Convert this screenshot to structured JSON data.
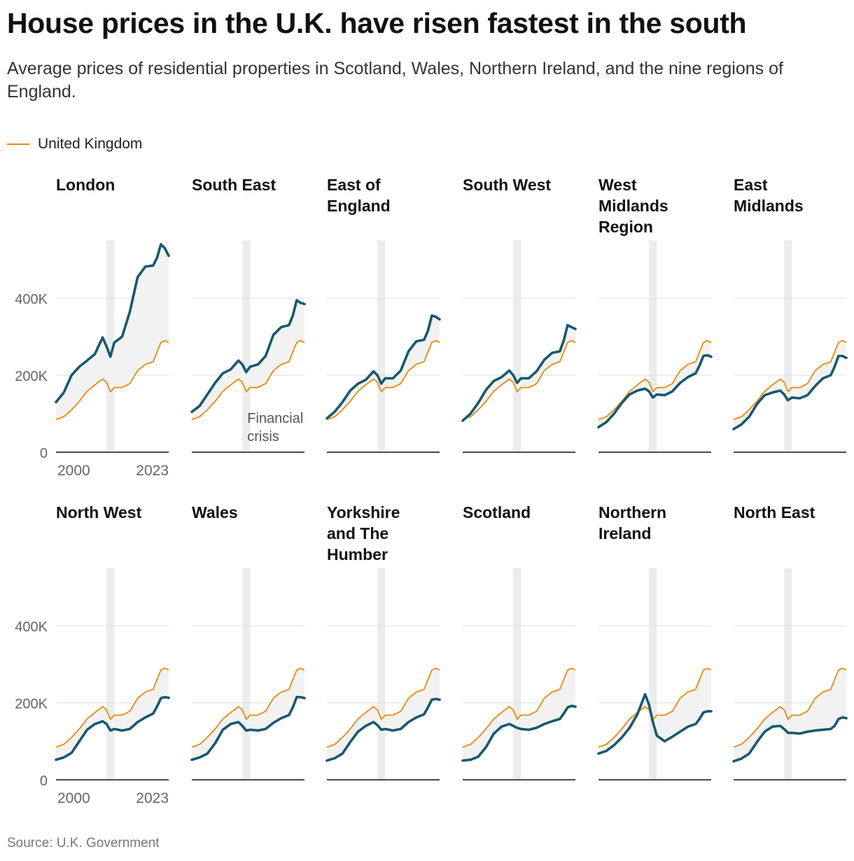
{
  "title": "House prices in the U.K. have risen fastest in the south",
  "subtitle": "Average prices of residential properties in Scotland, Wales, Northern Ireland, and the nine regions of England.",
  "legend": {
    "label": "United Kingdom",
    "color": "#e8890c"
  },
  "source": "Source: U.K. Government",
  "colors": {
    "region": "#17586f",
    "uk": "#e8890c",
    "shade": "#f2f2f2",
    "crisis": "#ececec",
    "grid": "#dddddd"
  },
  "annotation": {
    "line1": "Financial",
    "line2": "crisis"
  },
  "chart_data": {
    "type": "line",
    "x_range": [
      1995,
      2024
    ],
    "y_range": [
      0,
      550000
    ],
    "y_ticks": [
      0,
      200000,
      400000
    ],
    "y_tick_labels": [
      "0",
      "200K",
      "400K"
    ],
    "x_tick_labels": [
      "2000",
      "2023"
    ],
    "crisis_band": [
      2008,
      2010
    ],
    "grid": true,
    "x": [
      1995,
      1997,
      1999,
      2001,
      2003,
      2005,
      2007,
      2008,
      2009,
      2010,
      2012,
      2014,
      2016,
      2018,
      2020,
      2021,
      2022,
      2023,
      2024
    ],
    "uk_series": {
      "name": "United Kingdom",
      "values": [
        85000,
        92000,
        110000,
        132000,
        158000,
        175000,
        190000,
        182000,
        157000,
        168000,
        168000,
        178000,
        212000,
        228000,
        235000,
        260000,
        285000,
        290000,
        285000
      ]
    },
    "regions": [
      {
        "name": "London",
        "values": [
          130000,
          155000,
          200000,
          222000,
          238000,
          255000,
          298000,
          275000,
          248000,
          285000,
          300000,
          365000,
          455000,
          482000,
          485000,
          505000,
          540000,
          530000,
          510000
        ]
      },
      {
        "name": "South East",
        "values": [
          105000,
          120000,
          150000,
          180000,
          205000,
          215000,
          238000,
          228000,
          208000,
          222000,
          228000,
          250000,
          305000,
          325000,
          330000,
          355000,
          395000,
          388000,
          385000
        ]
      },
      {
        "name": "East of England",
        "values": [
          88000,
          105000,
          130000,
          160000,
          178000,
          188000,
          210000,
          200000,
          178000,
          192000,
          192000,
          212000,
          262000,
          288000,
          292000,
          315000,
          355000,
          352000,
          345000
        ]
      },
      {
        "name": "South West",
        "values": [
          82000,
          100000,
          128000,
          162000,
          185000,
          195000,
          212000,
          200000,
          180000,
          192000,
          192000,
          210000,
          240000,
          258000,
          262000,
          290000,
          330000,
          325000,
          320000
        ]
      },
      {
        "name": "West Midlands Region",
        "values": [
          65000,
          78000,
          100000,
          128000,
          150000,
          160000,
          165000,
          158000,
          142000,
          150000,
          148000,
          158000,
          180000,
          195000,
          205000,
          225000,
          250000,
          252000,
          248000
        ]
      },
      {
        "name": "East Midlands",
        "values": [
          60000,
          72000,
          92000,
          125000,
          148000,
          155000,
          160000,
          150000,
          135000,
          142000,
          140000,
          148000,
          172000,
          192000,
          200000,
          222000,
          250000,
          250000,
          245000
        ]
      },
      {
        "name": "North West",
        "values": [
          52000,
          58000,
          70000,
          100000,
          130000,
          145000,
          152000,
          145000,
          128000,
          132000,
          128000,
          132000,
          150000,
          162000,
          172000,
          190000,
          212000,
          215000,
          213000
        ]
      },
      {
        "name": "Wales",
        "values": [
          52000,
          58000,
          68000,
          95000,
          130000,
          145000,
          150000,
          140000,
          128000,
          130000,
          128000,
          132000,
          148000,
          160000,
          168000,
          188000,
          215000,
          215000,
          212000
        ]
      },
      {
        "name": "Yorkshire and The Humber",
        "values": [
          50000,
          56000,
          68000,
          98000,
          125000,
          140000,
          150000,
          142000,
          130000,
          132000,
          128000,
          132000,
          150000,
          162000,
          170000,
          188000,
          208000,
          210000,
          208000
        ]
      },
      {
        "name": "Scotland",
        "values": [
          50000,
          52000,
          60000,
          85000,
          120000,
          138000,
          145000,
          140000,
          135000,
          132000,
          130000,
          135000,
          145000,
          152000,
          158000,
          172000,
          188000,
          192000,
          190000
        ]
      },
      {
        "name": "Northern Ireland",
        "values": [
          68000,
          75000,
          90000,
          110000,
          135000,
          170000,
          222000,
          195000,
          150000,
          115000,
          100000,
          112000,
          125000,
          138000,
          145000,
          158000,
          175000,
          178000,
          178000
        ]
      },
      {
        "name": "North East",
        "values": [
          48000,
          55000,
          68000,
          98000,
          125000,
          138000,
          140000,
          132000,
          122000,
          122000,
          120000,
          125000,
          128000,
          130000,
          132000,
          140000,
          158000,
          162000,
          160000
        ]
      }
    ]
  }
}
